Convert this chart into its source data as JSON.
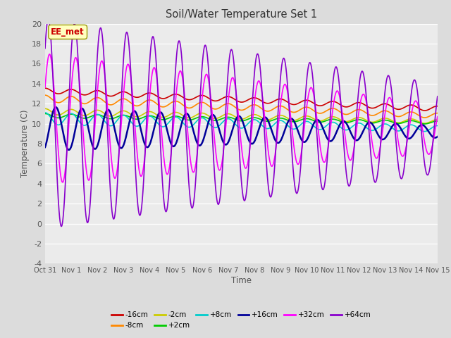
{
  "title": "Soil/Water Temperature Set 1",
  "xlabel": "Time",
  "ylabel": "Temperature (C)",
  "ylim": [
    -4,
    20
  ],
  "xlim": [
    0,
    15
  ],
  "xtick_labels": [
    "Oct 31",
    "Nov 1",
    "Nov 2",
    "Nov 3",
    "Nov 4",
    "Nov 5",
    "Nov 6",
    "Nov 7",
    "Nov 8",
    "Nov 9",
    "Nov 10",
    "Nov 11",
    "Nov 12",
    "Nov 13",
    "Nov 14",
    "Nov 15"
  ],
  "ytick_values": [
    -4,
    -2,
    0,
    2,
    4,
    6,
    8,
    10,
    12,
    14,
    16,
    18,
    20
  ],
  "annotation_text": "EE_met",
  "annotation_color": "#cc0000",
  "background_color": "#dcdcdc",
  "plot_background": "#ebebeb",
  "linewidth": 1.2,
  "series": [
    {
      "label": "-16cm",
      "color": "#cc0000",
      "trend_s": 13.3,
      "trend_e": 11.5,
      "amp_s": 0.25,
      "amp_e": 0.25,
      "phase": 1.57
    },
    {
      "label": "-8cm",
      "color": "#ff8800",
      "trend_s": 12.5,
      "trend_e": 10.8,
      "amp_s": 0.35,
      "amp_e": 0.25,
      "phase": 1.57
    },
    {
      "label": "-2cm",
      "color": "#cccc00",
      "trend_s": 11.2,
      "trend_e": 10.2,
      "amp_s": 0.3,
      "amp_e": 0.2,
      "phase": 1.57
    },
    {
      "label": "+2cm",
      "color": "#00cc00",
      "trend_s": 10.8,
      "trend_e": 10.1,
      "amp_s": 0.2,
      "amp_e": 0.15,
      "phase": 1.57
    },
    {
      "label": "+8cm",
      "color": "#00cccc",
      "trend_s": 10.5,
      "trend_e": 9.5,
      "amp_s": 0.6,
      "amp_e": 0.3,
      "phase": 1.57
    },
    {
      "label": "+16cm",
      "color": "#000099",
      "trend_s": 9.5,
      "trend_e": 9.2,
      "amp_s": 2.2,
      "amp_e": 0.6,
      "phase": -1.0
    },
    {
      "label": "+32cm",
      "color": "#ff00ff",
      "trend_s": 10.5,
      "trend_e": 9.5,
      "amp_s": 6.5,
      "amp_e": 2.5,
      "phase": 0.5
    },
    {
      "label": "+64cm",
      "color": "#8800cc",
      "trend_s": 10.0,
      "trend_e": 9.5,
      "amp_s": 10.5,
      "amp_e": 4.5,
      "phase": 0.8
    }
  ],
  "legend_items": [
    {
      "label": "-16cm",
      "color": "#cc0000"
    },
    {
      "label": "-8cm",
      "color": "#ff8800"
    },
    {
      "label": "-2cm",
      "color": "#cccc00"
    },
    {
      "label": "+2cm",
      "color": "#00cc00"
    },
    {
      "label": "+8cm",
      "color": "#00cccc"
    },
    {
      "label": "+16cm",
      "color": "#000099"
    },
    {
      "label": "+32cm",
      "color": "#ff00ff"
    },
    {
      "label": "+64cm",
      "color": "#8800cc"
    }
  ]
}
